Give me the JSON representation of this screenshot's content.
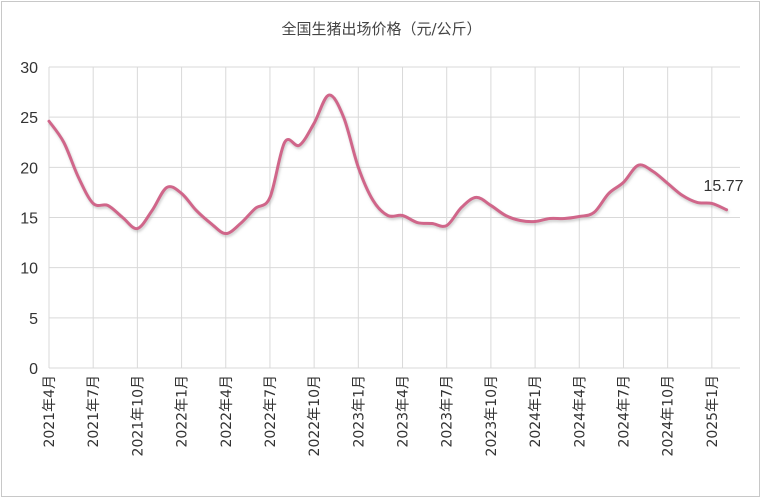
{
  "chart_data": {
    "type": "line",
    "title": "全国生猪出场价格（元/公斤）",
    "xlabel": "",
    "ylabel": "",
    "ylim": [
      0,
      30
    ],
    "yticks": [
      0,
      5,
      10,
      15,
      20,
      25,
      30
    ],
    "grid": true,
    "legend": "none",
    "line_color": "#d0668a",
    "x_tick_labels": [
      "2021年4月",
      "2021年7月",
      "2021年10月",
      "2022年1月",
      "2022年4月",
      "2022年7月",
      "2022年10月",
      "2023年1月",
      "2023年4月",
      "2023年7月",
      "2023年10月",
      "2024年1月",
      "2024年4月",
      "2024年7月",
      "2024年10月",
      "2025年1月"
    ],
    "x": [
      "2021-04",
      "2021-05",
      "2021-06",
      "2021-07",
      "2021-08",
      "2021-09",
      "2021-10",
      "2021-11",
      "2021-12",
      "2022-01",
      "2022-02",
      "2022-03",
      "2022-04",
      "2022-05",
      "2022-06",
      "2022-07",
      "2022-08",
      "2022-09",
      "2022-10",
      "2022-11",
      "2022-12",
      "2023-01",
      "2023-02",
      "2023-03",
      "2023-04",
      "2023-05",
      "2023-06",
      "2023-07",
      "2023-08",
      "2023-09",
      "2023-10",
      "2023-11",
      "2023-12",
      "2024-01",
      "2024-02",
      "2024-03",
      "2024-04",
      "2024-05",
      "2024-06",
      "2024-07",
      "2024-08",
      "2024-09",
      "2024-10",
      "2024-11",
      "2024-12",
      "2025-01",
      "2025-02"
    ],
    "values": [
      24.6,
      22.5,
      19.0,
      16.4,
      16.2,
      15.0,
      13.9,
      15.7,
      18.0,
      17.4,
      15.7,
      14.4,
      13.4,
      14.4,
      15.9,
      17.0,
      22.5,
      22.2,
      24.4,
      27.2,
      25.0,
      20.0,
      16.7,
      15.2,
      15.2,
      14.5,
      14.4,
      14.2,
      16.0,
      17.0,
      16.2,
      15.2,
      14.7,
      14.6,
      14.9,
      14.9,
      15.1,
      15.5,
      17.4,
      18.5,
      20.2,
      19.6,
      18.4,
      17.2,
      16.5,
      16.4,
      15.77
    ],
    "annotation": "15.77"
  }
}
